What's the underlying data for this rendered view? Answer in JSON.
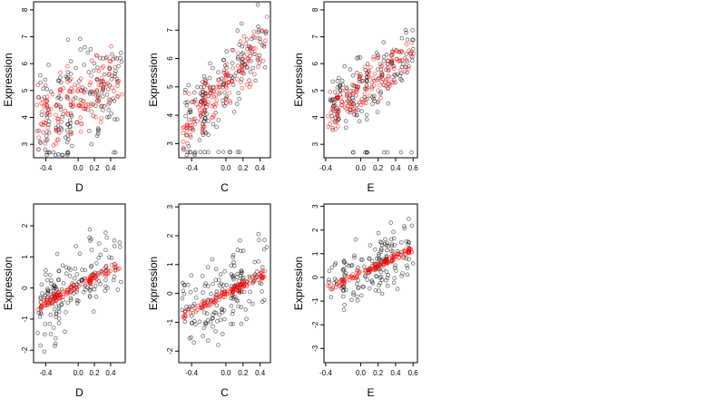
{
  "chart_data": [
    {
      "type": "scatter",
      "xlabel": "D",
      "ylabel": "Expression",
      "xlim": [
        -0.55,
        0.58
      ],
      "ylim": [
        2.5,
        8.3
      ],
      "xticks": [
        "-0.4",
        "0.0",
        "0.2",
        "0.4"
      ],
      "yticks": [
        "3",
        "4",
        "5",
        "6",
        "7",
        "8"
      ],
      "series": [
        {
          "color": "#000000"
        },
        {
          "color": "#ff0000"
        }
      ],
      "seed": 11,
      "trend": {
        "x0": -0.55,
        "x1": 0.55,
        "y0": 3.9,
        "y1": 5.3
      },
      "spread": 1.4,
      "floor": 2.7
    },
    {
      "type": "scatter",
      "xlabel": "C",
      "ylabel": "Expression",
      "xlim": [
        -0.55,
        0.52
      ],
      "ylim": [
        2.5,
        8.0
      ],
      "xticks": [
        "-0.4",
        "0.0",
        "0.2",
        "0.4"
      ],
      "yticks": [
        "3",
        "4",
        "5",
        "6",
        "7"
      ],
      "series": [
        {
          "color": "#000000"
        },
        {
          "color": "#ff0000"
        }
      ],
      "seed": 23,
      "trend": {
        "x0": -0.5,
        "x1": 0.5,
        "y0": 3.5,
        "y1": 6.8
      },
      "spread": 1.0,
      "floor": 2.7
    },
    {
      "type": "scatter",
      "xlabel": "E",
      "ylabel": "Expression",
      "xlim": [
        -0.42,
        0.65
      ],
      "ylim": [
        2.5,
        8.3
      ],
      "xticks": [
        "-0.4",
        "0.0",
        "0.2",
        "0.4",
        "0.6"
      ],
      "yticks": [
        "3",
        "4",
        "5",
        "6",
        "7",
        "8"
      ],
      "series": [
        {
          "color": "#000000"
        },
        {
          "color": "#ff0000"
        }
      ],
      "seed": 37,
      "trend": {
        "x0": -0.4,
        "x1": 0.6,
        "y0": 4.1,
        "y1": 6.4
      },
      "spread": 0.9,
      "floor": 2.7
    },
    {
      "type": "scatter",
      "xlabel": "D",
      "ylabel": "Expression",
      "xlim": [
        -0.55,
        0.58
      ],
      "ylim": [
        -2.4,
        2.7
      ],
      "xticks": [
        "-0.4",
        "0.0",
        "0.2",
        "0.4"
      ],
      "yticks": [
        "-2",
        "-1",
        "0",
        "1",
        "2"
      ],
      "series": [
        {
          "color": "#000000"
        },
        {
          "color": "#ff0000"
        }
      ],
      "seed": 53,
      "trend": {
        "x0": -0.5,
        "x1": 0.55,
        "y0": -0.6,
        "y1": 0.8
      },
      "spread": 1.0
    },
    {
      "type": "scatter",
      "xlabel": "C",
      "ylabel": "Expression",
      "xlim": [
        -0.55,
        0.52
      ],
      "ylim": [
        -2.4,
        3.1
      ],
      "xticks": [
        "-0.4",
        "0.0",
        "0.2",
        "0.4"
      ],
      "yticks": [
        "-2",
        "-1",
        "0",
        "1",
        "2",
        "3"
      ],
      "series": [
        {
          "color": "#000000"
        },
        {
          "color": "#ff0000"
        }
      ],
      "seed": 71,
      "trend": {
        "x0": -0.5,
        "x1": 0.5,
        "y0": -0.75,
        "y1": 0.75
      },
      "spread": 1.0
    },
    {
      "type": "scatter",
      "xlabel": "E",
      "ylabel": "Expression",
      "xlim": [
        -0.42,
        0.65
      ],
      "ylim": [
        -3.6,
        3.1
      ],
      "xticks": [
        "-0.4",
        "0.0",
        "0.2",
        "0.4",
        "0.6"
      ],
      "yticks": [
        "-3",
        "-2",
        "-1",
        "0",
        "1",
        "2",
        "3"
      ],
      "series": [
        {
          "color": "#000000"
        },
        {
          "color": "#ff0000"
        }
      ],
      "seed": 89,
      "trend": {
        "x0": -0.4,
        "x1": 0.6,
        "y0": -0.5,
        "y1": 1.2
      },
      "spread": 1.0
    }
  ]
}
